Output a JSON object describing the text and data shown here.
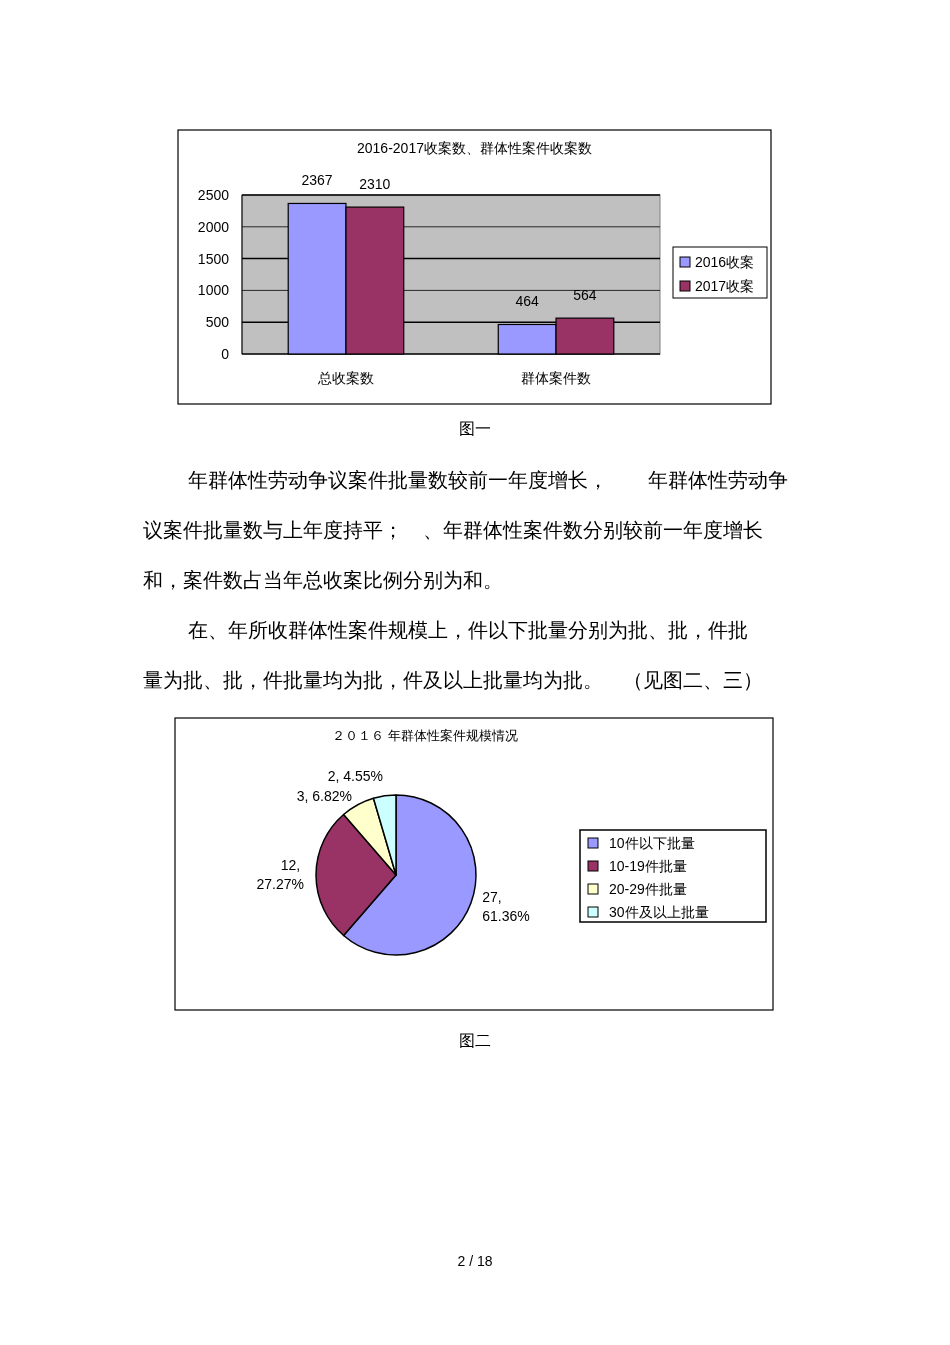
{
  "chart_data": [
    {
      "type": "bar",
      "title": "2016-2017收案数、群体性案件收案数",
      "categories": [
        "总收案数",
        "群体案件数"
      ],
      "series": [
        {
          "name": "2016收案",
          "color": "#9999ff",
          "values": [
            2367,
            464
          ]
        },
        {
          "name": "2017收案",
          "color": "#993366",
          "values": [
            2310,
            564
          ]
        }
      ],
      "ylim": [
        0,
        2500
      ],
      "yticks": [
        0,
        500,
        1000,
        1500,
        2000,
        2500
      ],
      "grid": "y",
      "legend": "right",
      "data_labels": true,
      "annotations": [
        "图一",
        "年群体性劳动争议案件批量数较前一年度增长，　　年群体性劳动争",
        "议案件批量数与上年度持平；　、年群体性案件数分别较前一年度增长",
        "和，案件数占当年总收案比例分别为和。",
        "在、年所收群体性案件规模上，件以下批量分别为批、批，件批",
        "量为批、批，件批量均为批，件及以上批量均为批。　（见图二、三）"
      ]
    },
    {
      "type": "pie",
      "title": "２０１６ 年群体性案件规模情况",
      "categories": [
        "10件以下批量",
        "10-19件批量",
        "20-29件批量",
        "30件及以上批量"
      ],
      "values": [
        27,
        12,
        3,
        2
      ],
      "colors": [
        "#9999ff",
        "#993366",
        "#ffffcc",
        "#ccffff"
      ],
      "value_labels": [
        "27, 61.36%",
        "12, 27.27%",
        "3, 6.82%",
        "2, 4.55%"
      ],
      "legend": "right",
      "annotations": [
        "图二",
        "2 / 18"
      ]
    }
  ]
}
